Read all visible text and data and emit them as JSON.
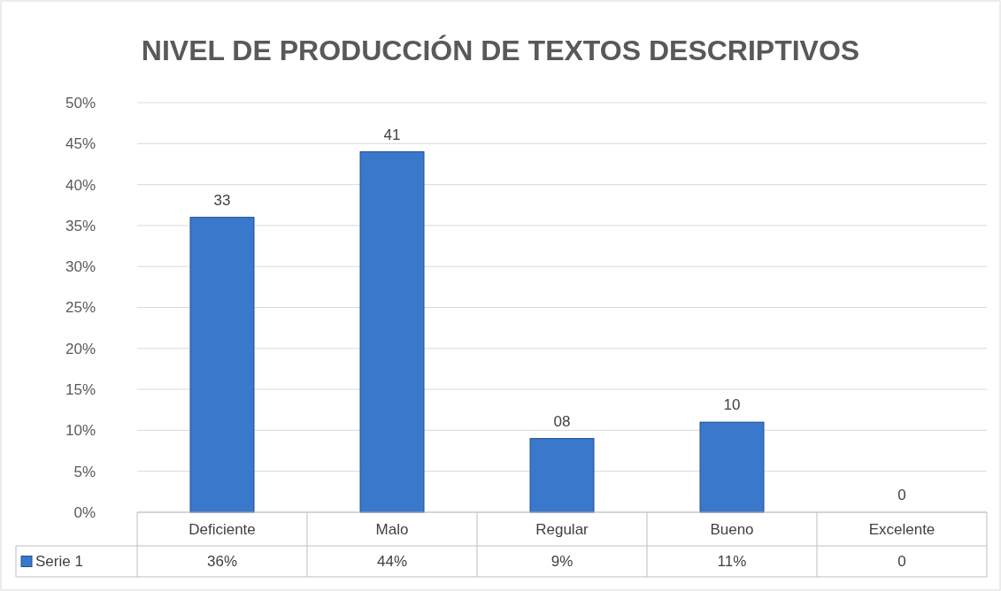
{
  "chart_data": {
    "type": "bar",
    "title": "NIVEL DE PRODUCCIÓN DE TEXTOS DESCRIPTIVOS",
    "categories": [
      "Deficiente",
      "Malo",
      "Regular",
      "Bueno",
      "Excelente"
    ],
    "series": [
      {
        "name": "Serie 1",
        "color": "#3a78cc",
        "values": [
          36,
          44,
          9,
          11,
          0
        ],
        "value_labels": [
          "36%",
          "44%",
          "9%",
          "11%",
          "0"
        ]
      }
    ],
    "ylim": [
      0,
      50
    ],
    "yticks": [
      {
        "value": 0,
        "label": "0%"
      },
      {
        "value": 5,
        "label": "5%"
      },
      {
        "value": 10,
        "label": "10%"
      },
      {
        "value": 15,
        "label": "15%"
      },
      {
        "value": 20,
        "label": "20%"
      },
      {
        "value": 25,
        "label": "25%"
      },
      {
        "value": 30,
        "label": "30%"
      },
      {
        "value": 35,
        "label": "35%"
      },
      {
        "value": 40,
        "label": "40%"
      },
      {
        "value": 45,
        "label": "45%"
      },
      {
        "value": 50,
        "label": "50%"
      }
    ],
    "annotations": [
      {
        "text": "33",
        "x": "Deficiente",
        "y": 36
      },
      {
        "text": "41",
        "x": "Malo",
        "y": 44
      },
      {
        "text": "08",
        "x": "Regular",
        "y": 9
      },
      {
        "text": "10",
        "x": "Bueno",
        "y": 11
      },
      {
        "text": "0",
        "x": "Excelente",
        "y": 0
      }
    ],
    "grid": "y",
    "legend": "bottom"
  }
}
